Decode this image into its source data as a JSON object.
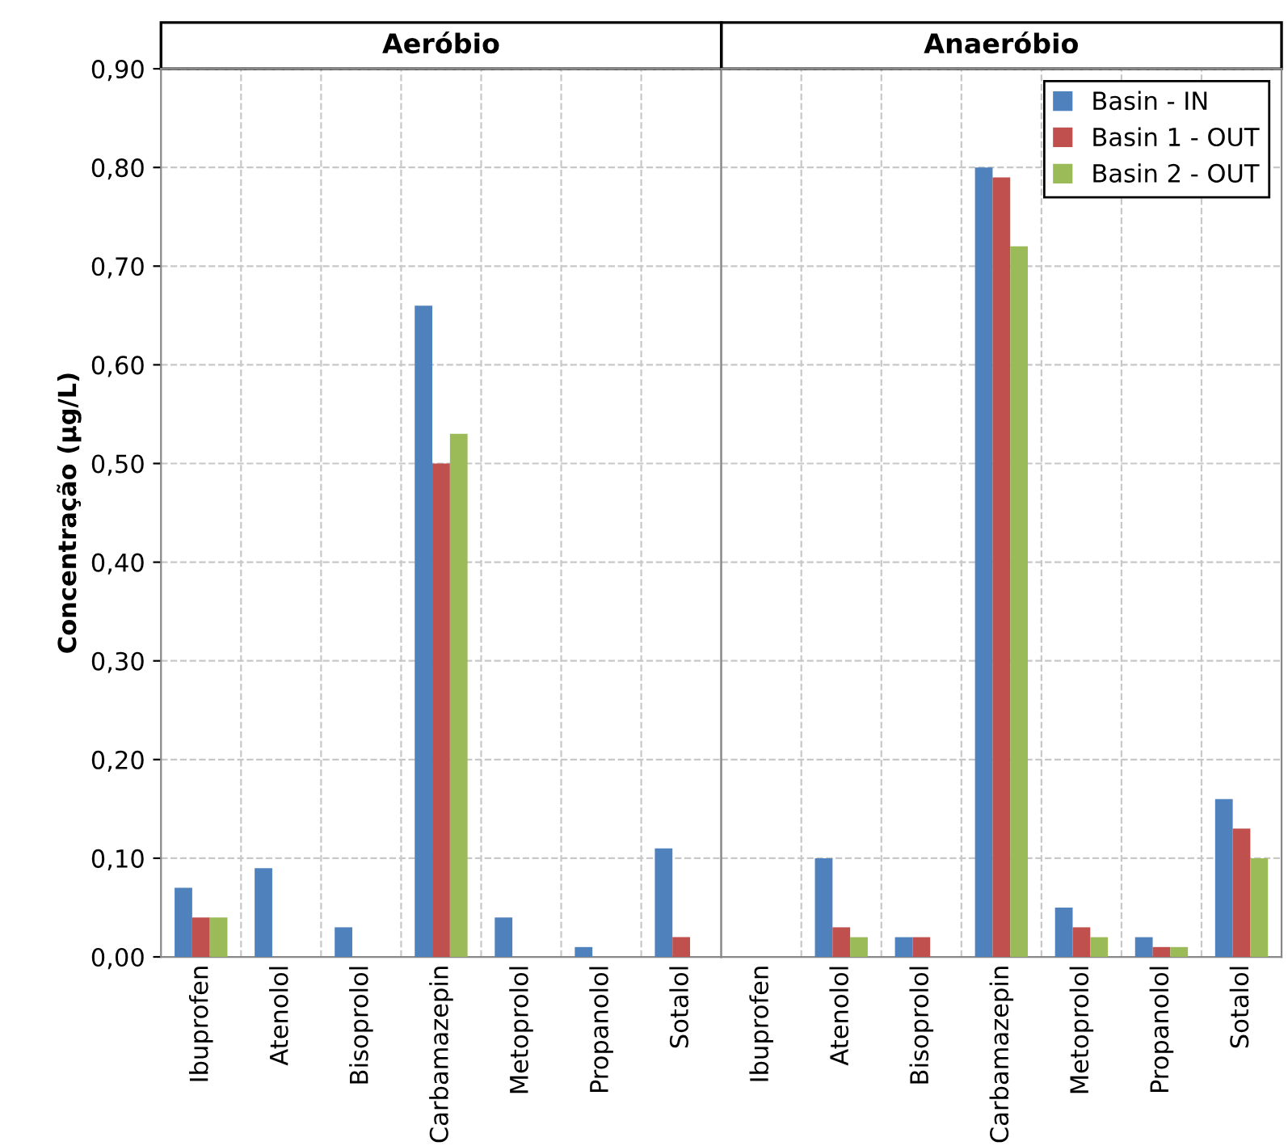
{
  "chart_data": [
    {
      "type": "bar",
      "title": "Aeróbio",
      "ylabel": "Concentração (µg/L)",
      "categories": [
        "Ibuprofen",
        "Atenolol",
        "Bisoprolol",
        "Carbamazepin",
        "Metoprolol",
        "Propanolol",
        "Sotalol"
      ],
      "series": [
        {
          "color": "#4f81bd",
          "values": [
            0.07,
            0.09,
            0.03,
            0.66,
            0.04,
            0.01,
            0.11
          ]
        },
        {
          "color": "#c0504d",
          "values": [
            0.04,
            0,
            0,
            0.5,
            0,
            0,
            0.02
          ]
        },
        {
          "color": "#9bbb59",
          "values": [
            0.04,
            0,
            0,
            0.53,
            0,
            0,
            0
          ]
        }
      ],
      "ylim": [
        0,
        0.9
      ],
      "yticks": [
        {
          "value": 0,
          "label": "0,00"
        },
        {
          "value": 0.1,
          "label": "0,10"
        },
        {
          "value": 0.2,
          "label": "0,20"
        },
        {
          "value": 0.3,
          "label": "0,30"
        },
        {
          "value": 0.4,
          "label": "0,40"
        },
        {
          "value": 0.5,
          "label": "0,50"
        },
        {
          "value": 0.6,
          "label": "0,60"
        },
        {
          "value": 0.7,
          "label": "0,70"
        },
        {
          "value": 0.8,
          "label": "0,80"
        },
        {
          "value": 0.9,
          "label": "0,90"
        }
      ],
      "grid": true,
      "legend": false
    },
    {
      "type": "bar",
      "title": "Anaeróbio",
      "categories": [
        "Ibuprofen",
        "Atenolol",
        "Bisoprolol",
        "Carbamazepin",
        "Metoprolol",
        "Propanolol",
        "Sotalol"
      ],
      "series": [
        {
          "name": "Basin - IN",
          "color": "#4f81bd",
          "values": [
            0,
            0.1,
            0.02,
            0.8,
            0.05,
            0.02,
            0.16
          ]
        },
        {
          "name": "Basin 1 - OUT",
          "color": "#c0504d",
          "values": [
            0,
            0.03,
            0.02,
            0.79,
            0.03,
            0.01,
            0.13
          ]
        },
        {
          "name": "Basin 2 - OUT",
          "color": "#9bbb59",
          "values": [
            0,
            0.02,
            0,
            0.72,
            0.02,
            0.01,
            0.1
          ]
        }
      ],
      "ylim": [
        0,
        0.9
      ],
      "tick_labels": "x",
      "grid": true,
      "legend": "top right"
    }
  ]
}
